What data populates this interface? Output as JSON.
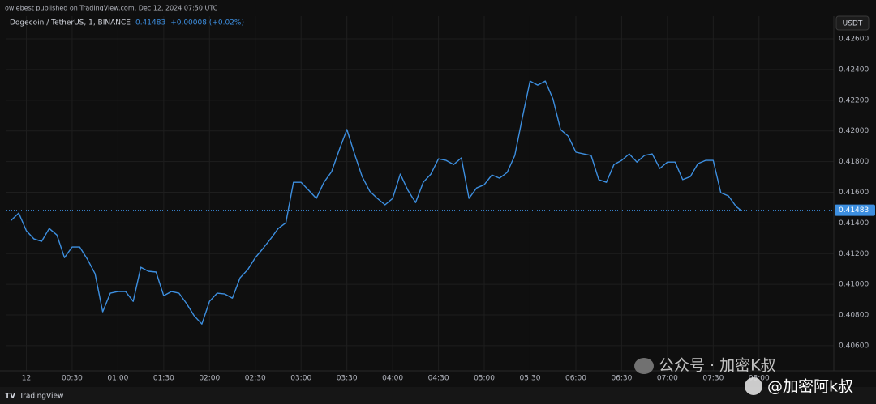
{
  "header": "owiebest published on TradingView.com, Dec 12, 2024 07:50 UTC",
  "footer_brand": "TradingView",
  "watermark": [
    "公众号 · 加密K叔",
    "@加密阿k叔"
  ],
  "chart_data": {
    "type": "line",
    "title": "Dogecoin / TetherUS, 1, BINANCE",
    "currency": "USDT",
    "last_price": {
      "value": 0.41483,
      "label": "0.41483"
    },
    "change": "+0.00008 (+0.02%)",
    "color": "#3d8fe0",
    "grid": true,
    "xlim": [
      -13,
      529
    ],
    "ylim": [
      0.40436,
      0.42748
    ],
    "xticks": [
      {
        "value": 0,
        "label": "12"
      },
      {
        "value": 30,
        "label": "00:30"
      },
      {
        "value": 60,
        "label": "01:00"
      },
      {
        "value": 90,
        "label": "01:30"
      },
      {
        "value": 120,
        "label": "02:00"
      },
      {
        "value": 150,
        "label": "02:30"
      },
      {
        "value": 180,
        "label": "03:00"
      },
      {
        "value": 210,
        "label": "03:30"
      },
      {
        "value": 240,
        "label": "04:00"
      },
      {
        "value": 270,
        "label": "04:30"
      },
      {
        "value": 300,
        "label": "05:00"
      },
      {
        "value": 330,
        "label": "05:30"
      },
      {
        "value": 360,
        "label": "06:00"
      },
      {
        "value": 390,
        "label": "06:30"
      },
      {
        "value": 420,
        "label": "07:00"
      },
      {
        "value": 450,
        "label": "07:30"
      },
      {
        "value": 480,
        "label": "08:00"
      }
    ],
    "yticks": [
      {
        "value": 0.426,
        "label": "0.42600"
      },
      {
        "value": 0.424,
        "label": "0.42400"
      },
      {
        "value": 0.422,
        "label": "0.42200"
      },
      {
        "value": 0.42,
        "label": "0.42000"
      },
      {
        "value": 0.418,
        "label": "0.41800"
      },
      {
        "value": 0.416,
        "label": "0.41600"
      },
      {
        "value": 0.414,
        "label": "0.41400"
      },
      {
        "value": 0.412,
        "label": "0.41200"
      },
      {
        "value": 0.41,
        "label": "0.41000"
      },
      {
        "value": 0.408,
        "label": "0.40800"
      },
      {
        "value": 0.406,
        "label": "0.40600"
      }
    ],
    "x": [
      -10,
      -5,
      0,
      5,
      10,
      15,
      20,
      25,
      30,
      35,
      40,
      45,
      50,
      55,
      60,
      65,
      70,
      75,
      80,
      85,
      90,
      95,
      100,
      105,
      110,
      115,
      120,
      125,
      130,
      135,
      140,
      145,
      150,
      155,
      160,
      165,
      170,
      175,
      180,
      185,
      190,
      195,
      200,
      205,
      210,
      215,
      220,
      225,
      230,
      235,
      240,
      245,
      250,
      255,
      260,
      265,
      270,
      275,
      280,
      285,
      290,
      295,
      300,
      305,
      310,
      315,
      320,
      325,
      330,
      335,
      340,
      345,
      350,
      355,
      360,
      365,
      370,
      375,
      380,
      385,
      390,
      395,
      400,
      405,
      410,
      415,
      420,
      425,
      430,
      435,
      440,
      445,
      450,
      455,
      460,
      465,
      468
    ],
    "values": [
      0.41417,
      0.41465,
      0.41349,
      0.41296,
      0.4128,
      0.41364,
      0.41322,
      0.41174,
      0.41243,
      0.41243,
      0.41164,
      0.41069,
      0.40821,
      0.40942,
      0.40953,
      0.40953,
      0.40889,
      0.41111,
      0.41085,
      0.4108,
      0.40926,
      0.40953,
      0.40942,
      0.40874,
      0.40794,
      0.40741,
      0.40889,
      0.40942,
      0.40937,
      0.4091,
      0.41042,
      0.41095,
      0.41174,
      0.41233,
      0.41296,
      0.41364,
      0.41401,
      0.41665,
      0.41665,
      0.41613,
      0.4156,
      0.41665,
      0.41734,
      0.41877,
      0.42009,
      0.4185,
      0.41702,
      0.41607,
      0.4156,
      0.41518,
      0.4156,
      0.41718,
      0.41613,
      0.41533,
      0.41665,
      0.41718,
      0.41818,
      0.41808,
      0.41781,
      0.41824,
      0.4156,
      0.41628,
      0.41649,
      0.41713,
      0.41692,
      0.41729,
      0.4184,
      0.42088,
      0.42325,
      0.42299,
      0.42325,
      0.42209,
      0.42009,
      0.41966,
      0.41861,
      0.4185,
      0.4184,
      0.41682,
      0.41665,
      0.41781,
      0.41808,
      0.4185,
      0.41797,
      0.4184,
      0.4185,
      0.41755,
      0.41797,
      0.41797,
      0.41682,
      0.41702,
      0.41787,
      0.41808,
      0.41808,
      0.41597,
      0.41576,
      0.41507,
      0.41483
    ]
  }
}
